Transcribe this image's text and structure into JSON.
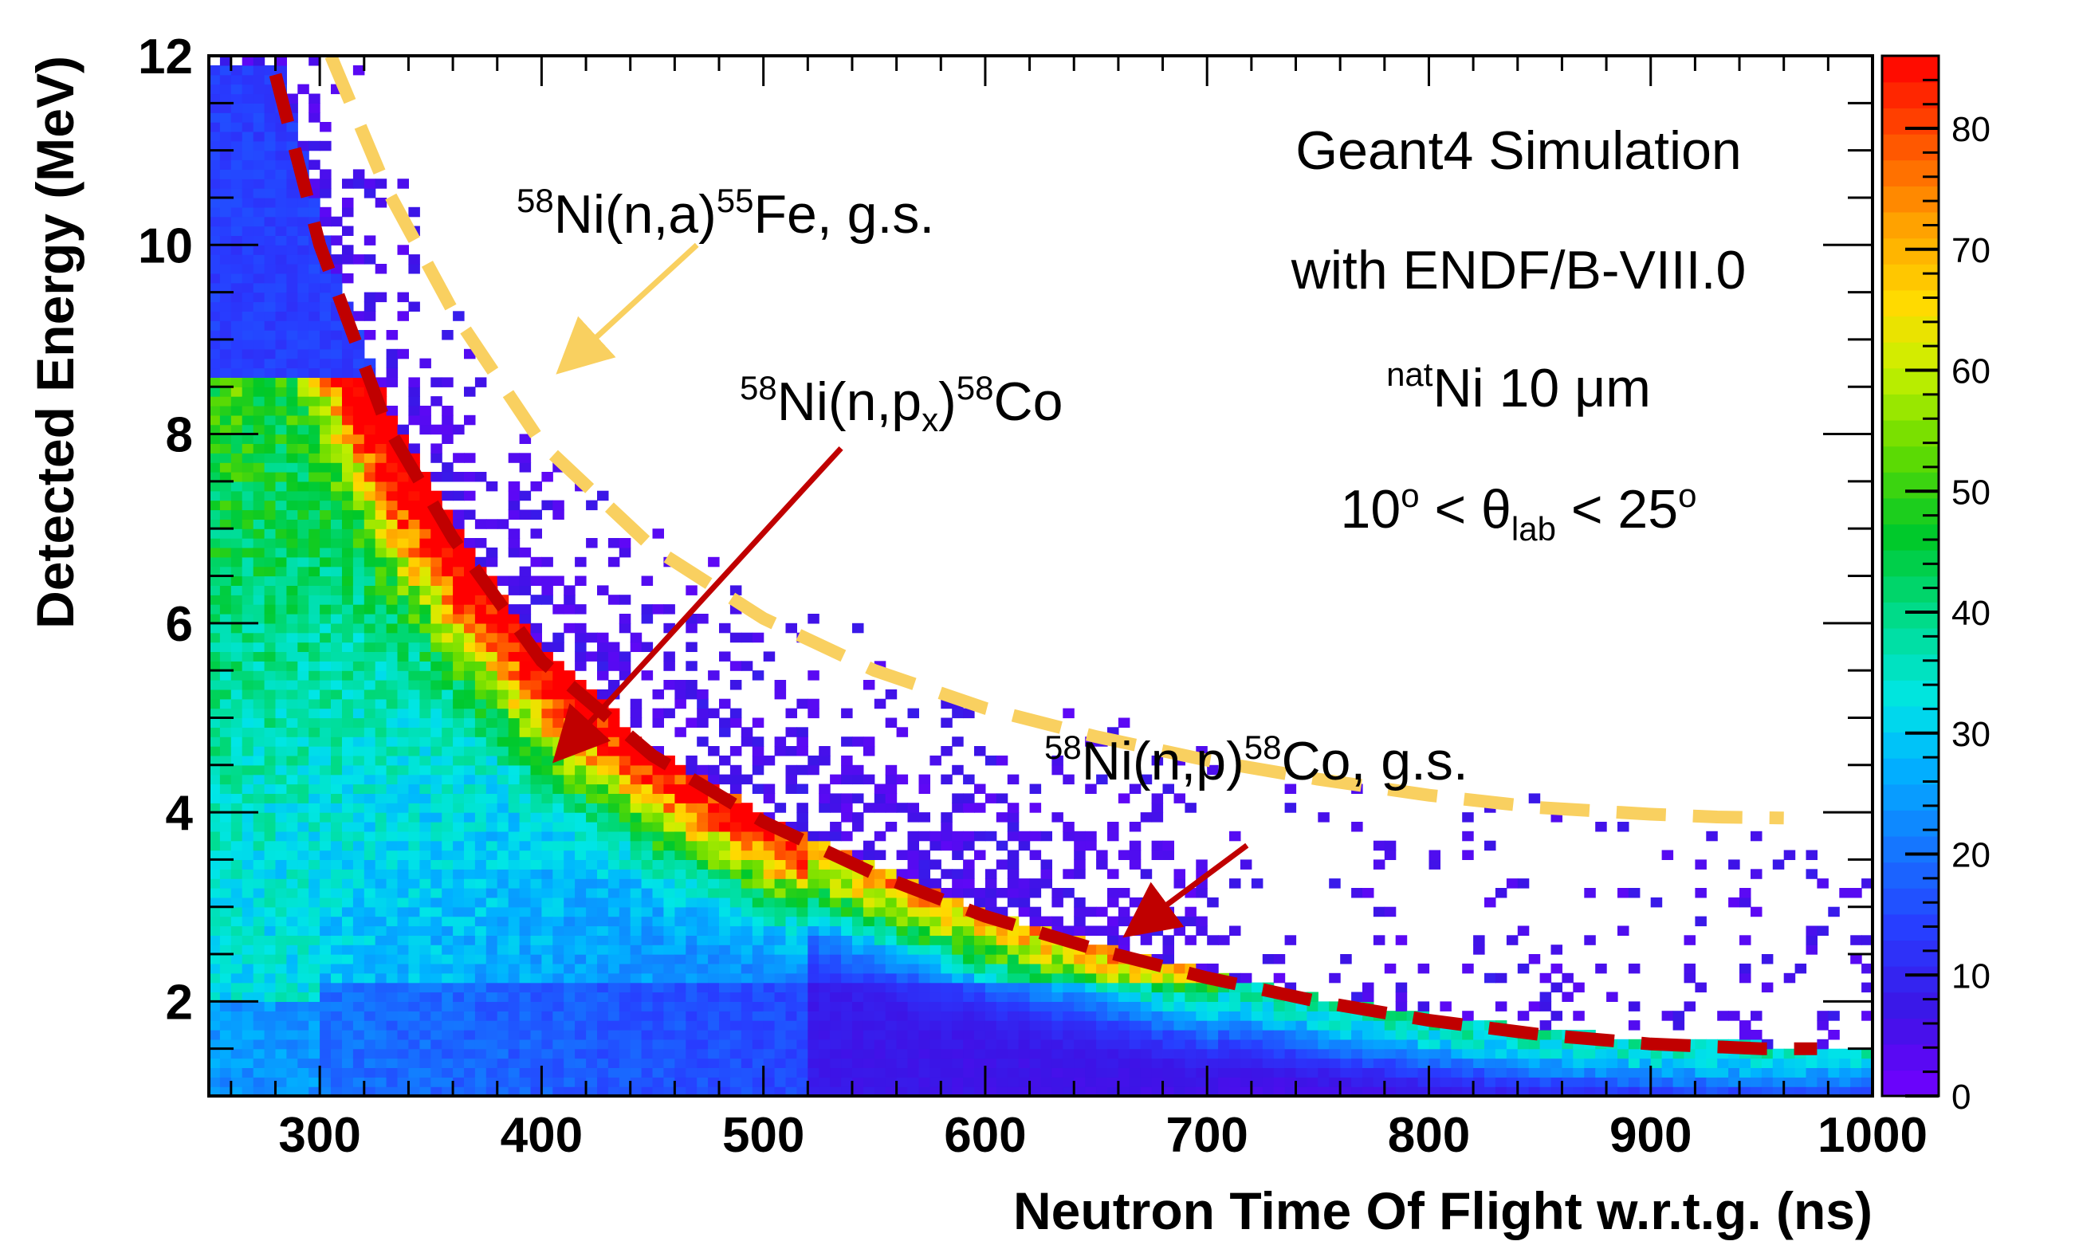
{
  "chart_data": {
    "type": "heatmap",
    "xlabel": "Neutron Time Of Flight w.r.t.g. (ns)",
    "ylabel": "Detected Energy (MeV)",
    "xlim": [
      250,
      1000
    ],
    "ylim": [
      1,
      12
    ],
    "x_ticks": [
      "300",
      "400",
      "500",
      "600",
      "700",
      "800",
      "900",
      "1000"
    ],
    "x_tick_values": [
      300,
      400,
      500,
      600,
      700,
      800,
      900,
      1000
    ],
    "y_ticks": [
      "2",
      "4",
      "6",
      "8",
      "10",
      "12"
    ],
    "y_tick_values": [
      2,
      4,
      6,
      8,
      10,
      12
    ],
    "colorbar": {
      "range": [
        0,
        86
      ],
      "ticks": [
        "0",
        "10",
        "20",
        "30",
        "40",
        "50",
        "60",
        "70",
        "80"
      ],
      "tick_values": [
        0,
        10,
        20,
        30,
        40,
        50,
        60,
        70,
        80
      ]
    },
    "info_text": {
      "line1": "Geant4 Simulation",
      "line2": "with ENDF/B-VIII.0",
      "line3_sup": "nat",
      "line3_main": "Ni 10 μm",
      "line4_a": "10",
      "line4_b": "o",
      "line4_c": " < θ",
      "line4_d": "lab",
      "line4_e": " < 25",
      "line4_f": "o"
    },
    "annotations": [
      {
        "id": "alpha",
        "sup1": "58",
        "main": "Ni(n,a)",
        "sup2": "55",
        "tail": "Fe, g.s.",
        "color": "#f9d060"
      },
      {
        "id": "px",
        "sup1": "58",
        "main": "Ni(n,p",
        "sub": "x",
        "close": ")",
        "sup2": "58",
        "tail": "Co",
        "color": "#c00000"
      },
      {
        "id": "p_gs",
        "sup1": "58",
        "main": "Ni(n,p)",
        "sup2": "58",
        "tail": "Co, g.s.",
        "color": "#c00000"
      }
    ],
    "curves": [
      {
        "name": "58Ni(n,a)55Fe g.s. kinematic line",
        "color": "#f9d060",
        "x": [
          305,
          330,
          360,
          400,
          450,
          500,
          550,
          600,
          650,
          700,
          750,
          800,
          850,
          900,
          930,
          960
        ],
        "y": [
          12.0,
          10.6,
          9.3,
          7.9,
          6.8,
          6.05,
          5.5,
          5.1,
          4.8,
          4.55,
          4.35,
          4.18,
          4.05,
          3.98,
          3.95,
          3.94
        ]
      },
      {
        "name": "58Ni(n,p)58Co g.s. kinematic line",
        "color": "#c00000",
        "x": [
          280,
          300,
          330,
          360,
          400,
          450,
          500,
          550,
          600,
          650,
          700,
          750,
          800,
          850,
          900,
          950,
          975
        ],
        "y": [
          11.8,
          10.0,
          8.1,
          6.9,
          5.6,
          4.6,
          3.9,
          3.35,
          2.9,
          2.55,
          2.25,
          2.0,
          1.8,
          1.65,
          1.55,
          1.5,
          1.5
        ]
      }
    ],
    "arrows": [
      {
        "for": "alpha",
        "from": [
          470,
          10.0
        ],
        "to": [
          412,
          8.75
        ]
      },
      {
        "for": "px",
        "from": [
          535,
          7.85
        ],
        "to": [
          410,
          4.65
        ]
      },
      {
        "for": "p_gs",
        "from": [
          718,
          3.65
        ],
        "to": [
          668,
          2.78
        ]
      }
    ]
  }
}
